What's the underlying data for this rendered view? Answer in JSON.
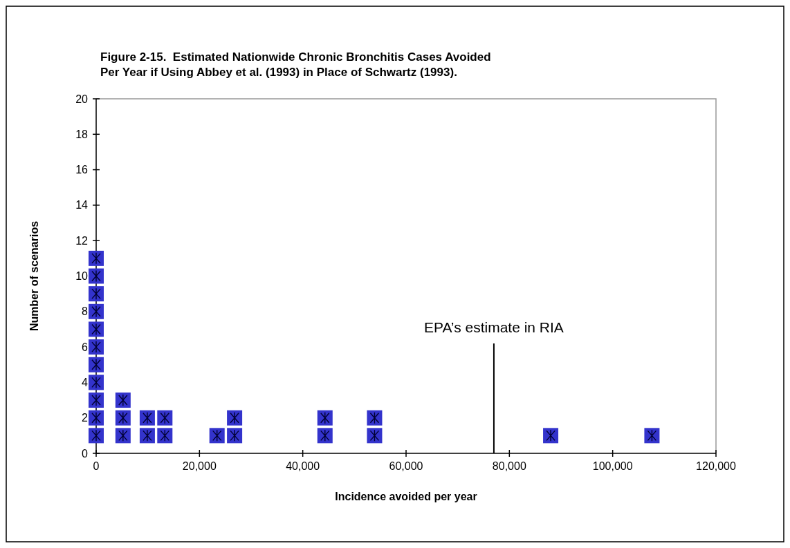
{
  "chart_data": {
    "type": "scatter",
    "title": "Figure 2-15.  Estimated Nationwide Chronic Bronchitis Cases Avoided Per Year if Using Abbey et al. (1993) in Place of Schwartz (1993).",
    "xlabel": "Incidence avoided per year",
    "ylabel": "Number of scenarios",
    "series": [
      {
        "color": "#3333cc",
        "x": [
          0,
          0,
          0,
          0,
          0,
          0,
          0,
          0,
          0,
          0,
          0,
          5200,
          5200,
          5200,
          9900,
          9900,
          13300,
          13300,
          23400,
          26800,
          26800,
          44300,
          44300,
          53900,
          53900,
          88000,
          107600
        ],
        "values": [
          1,
          2,
          3,
          4,
          5,
          6,
          7,
          8,
          9,
          10,
          11,
          1,
          2,
          3,
          1,
          2,
          1,
          2,
          1,
          1,
          2,
          1,
          2,
          1,
          2,
          1,
          1
        ]
      }
    ],
    "marker": "square",
    "xlim": [
      0,
      120000
    ],
    "ylim": [
      0,
      20
    ],
    "xticks": [
      0,
      {
        "value": 20000,
        "label": "20,000"
      },
      {
        "value": 40000,
        "label": "40,000"
      },
      {
        "value": 60000,
        "label": "60,000"
      },
      {
        "value": 80000,
        "label": "80,000"
      },
      {
        "value": 100000,
        "label": "100,000"
      },
      {
        "value": 120000,
        "label": "120,000"
      }
    ],
    "yticks": [
      0,
      2,
      4,
      6,
      8,
      10,
      12,
      14,
      16,
      18,
      20
    ],
    "ref_lines": [
      {
        "axis": "x",
        "value": 77000,
        "label": "EPA’s estimate in RIA",
        "color": "#000000"
      }
    ],
    "grid": false
  }
}
